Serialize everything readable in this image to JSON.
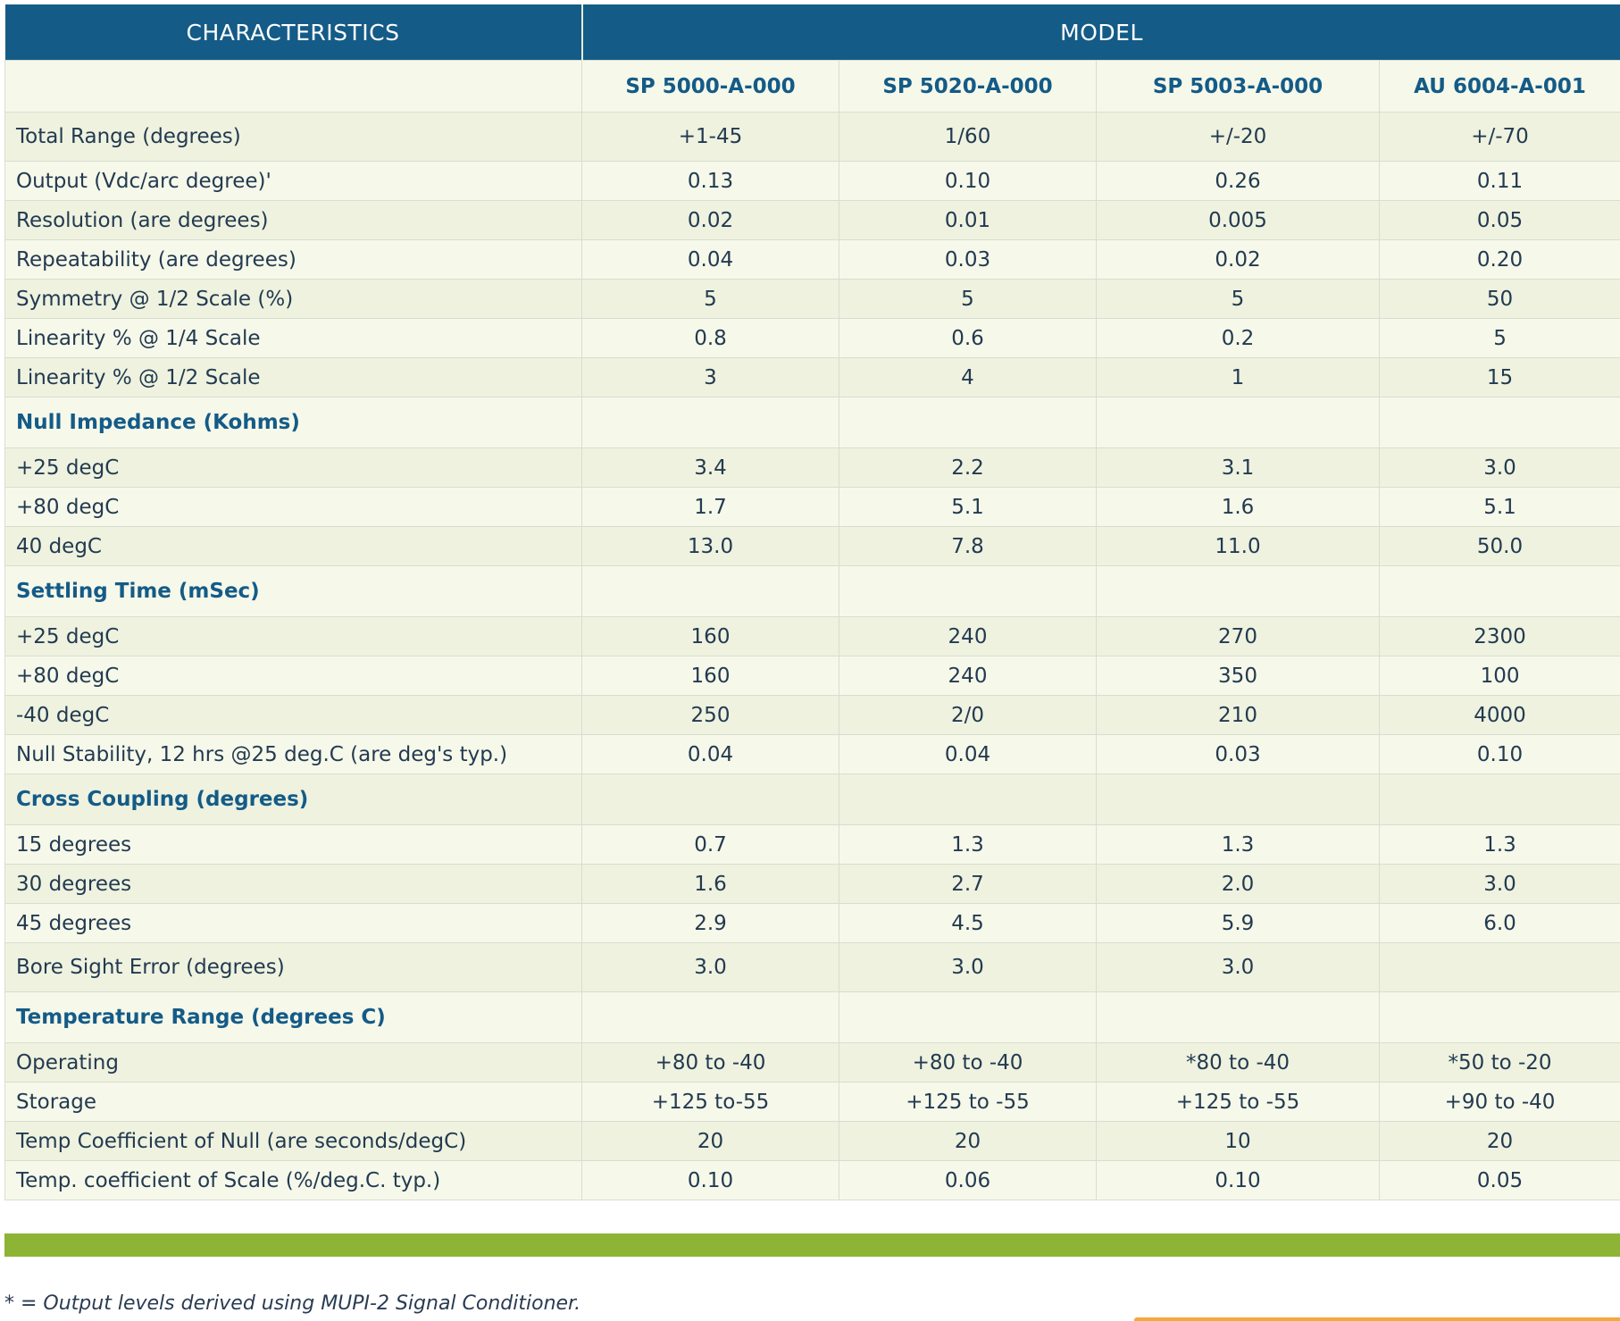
{
  "header": {
    "characteristics": "CHARACTERISTICS",
    "model": "MODEL"
  },
  "models": [
    "SP 5000-A-000",
    "SP 5020-A-000",
    "SP 5003-A-000",
    "AU 6004-A-001"
  ],
  "rows": [
    {
      "kind": "data",
      "label": "Total Range (degrees)",
      "values": [
        "+1-45",
        "1/60",
        "+/-20",
        "+/-70"
      ],
      "tall": true
    },
    {
      "kind": "data",
      "label": "Output (Vdc/arc degree)'",
      "values": [
        "0.13",
        "0.10",
        "0.26",
        "0.11"
      ]
    },
    {
      "kind": "data",
      "label": "Resolution (are degrees)",
      "values": [
        "0.02",
        "0.01",
        "0.005",
        "0.05"
      ]
    },
    {
      "kind": "data",
      "label": "Repeatability (are degrees)",
      "values": [
        "0.04",
        "0.03",
        "0.02",
        "0.20"
      ]
    },
    {
      "kind": "data",
      "label": "Symmetry @ 1/2 Scale (%)",
      "values": [
        "5",
        "5",
        "5",
        "50"
      ]
    },
    {
      "kind": "data",
      "label": "Linearity % @ 1/4 Scale",
      "values": [
        "0.8",
        "0.6",
        "0.2",
        "5"
      ]
    },
    {
      "kind": "data",
      "label": "Linearity % @ 1/2 Scale",
      "values": [
        "3",
        "4",
        "1",
        "15"
      ]
    },
    {
      "kind": "section",
      "label": "Null Impedance (Kohms)"
    },
    {
      "kind": "data",
      "label": "+25 degC",
      "values": [
        "3.4",
        "2.2",
        "3.1",
        "3.0"
      ]
    },
    {
      "kind": "data",
      "label": "+80 degC",
      "values": [
        "1.7",
        "5.1",
        "1.6",
        "5.1"
      ]
    },
    {
      "kind": "data",
      "label": "40 degC",
      "values": [
        "13.0",
        "7.8",
        "11.0",
        "50.0"
      ]
    },
    {
      "kind": "section",
      "label": "Settling Time (mSec)"
    },
    {
      "kind": "data",
      "label": "+25 degC",
      "values": [
        "160",
        "240",
        "270",
        "2300"
      ]
    },
    {
      "kind": "data",
      "label": "+80 degC",
      "values": [
        "160",
        "240",
        "350",
        "100"
      ]
    },
    {
      "kind": "data",
      "label": "-40 degC",
      "values": [
        "250",
        "2/0",
        "210",
        "4000"
      ]
    },
    {
      "kind": "data",
      "label": "Null Stability, 12 hrs @25 deg.C (are deg's typ.)",
      "values": [
        "0.04",
        "0.04",
        "0.03",
        "0.10"
      ]
    },
    {
      "kind": "section",
      "label": "Cross Coupling (degrees)"
    },
    {
      "kind": "data",
      "label": "15 degrees",
      "values": [
        "0.7",
        "1.3",
        "1.3",
        "1.3"
      ]
    },
    {
      "kind": "data",
      "label": "30 degrees",
      "values": [
        "1.6",
        "2.7",
        "2.0",
        "3.0"
      ]
    },
    {
      "kind": "data",
      "label": "45 degrees",
      "values": [
        "2.9",
        "4.5",
        "5.9",
        "6.0"
      ]
    },
    {
      "kind": "data",
      "label": "Bore Sight Error (degrees)",
      "values": [
        "3.0",
        "3.0",
        "3.0",
        ""
      ],
      "tall": true
    },
    {
      "kind": "section",
      "label": "Temperature Range (degrees C)"
    },
    {
      "kind": "data",
      "label": "Operating",
      "values": [
        "+80 to -40",
        "+80 to -40",
        "*80 to -40",
        "*50 to -20"
      ]
    },
    {
      "kind": "data",
      "label": "Storage",
      "values": [
        "+125 to-55",
        "+125 to -55",
        "+125 to -55",
        "+90 to -40"
      ]
    },
    {
      "kind": "data",
      "label": "Temp Coefficient of Null (are seconds/degC)",
      "values": [
        "20",
        "20",
        "10",
        "20"
      ]
    },
    {
      "kind": "data",
      "label": "Temp. coefficient of Scale (%/deg.C. typ.)",
      "values": [
        "0.10",
        "0.06",
        "0.10",
        "0.05"
      ]
    }
  ],
  "footnote": "* = Output levels derived using MUPI-2 Signal Conditioner."
}
